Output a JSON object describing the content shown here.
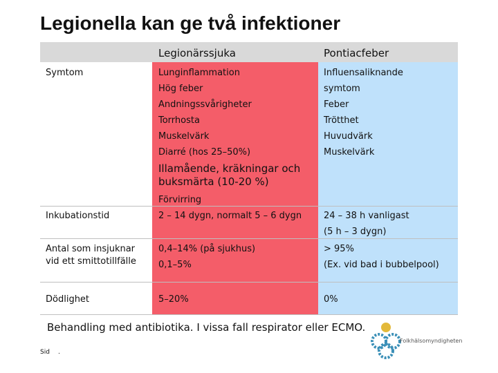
{
  "title": "Legionella kan ge två infektioner",
  "table": {
    "header": [
      "Legionärssjuka",
      "Pontiacfeber"
    ],
    "rows": [
      {
        "label": [
          "Symtom"
        ],
        "cells": [
          [
            "Lunginflammation",
            "Hög feber",
            "Andningssvårigheter",
            "Torrhosta",
            "Muskelvärk",
            "Diarré (hos 25–50%)",
            "Illamående, kräkningar och",
            "buksmärta (10-20 %)",
            "Förvirring"
          ],
          [
            "Influensaliknande",
            "symtom",
            "Feber",
            "Trötthet",
            "Huvudvärk",
            "Muskelvärk"
          ]
        ]
      },
      {
        "label": [
          "Inkubationstid"
        ],
        "cells": [
          [
            "2 – 14 dygn, normalt 5 – 6 dygn"
          ],
          [
            "24 – 38 h vanligast",
            "(5 h – 3 dygn)"
          ]
        ]
      },
      {
        "label": [
          "Antal som insjuknar",
          "vid ett smittotillfälle"
        ],
        "cells": [
          [
            "0,4–14% (på sjukhus)",
            "0,1–5%"
          ],
          [
            "> 95%",
            "(Ex. vid bad i bubbelpool)"
          ]
        ]
      },
      {
        "label": [
          "Dödlighet"
        ],
        "cells": [
          [
            "5–20%"
          ],
          [
            "0%"
          ]
        ]
      }
    ]
  },
  "footer": {
    "note": "Behandling med antibiotika. I vissa fall respirator eller ECMO.",
    "page_label": "Sid",
    "page_number": ".",
    "logo_text": "Folkhälsomyndigheten"
  }
}
